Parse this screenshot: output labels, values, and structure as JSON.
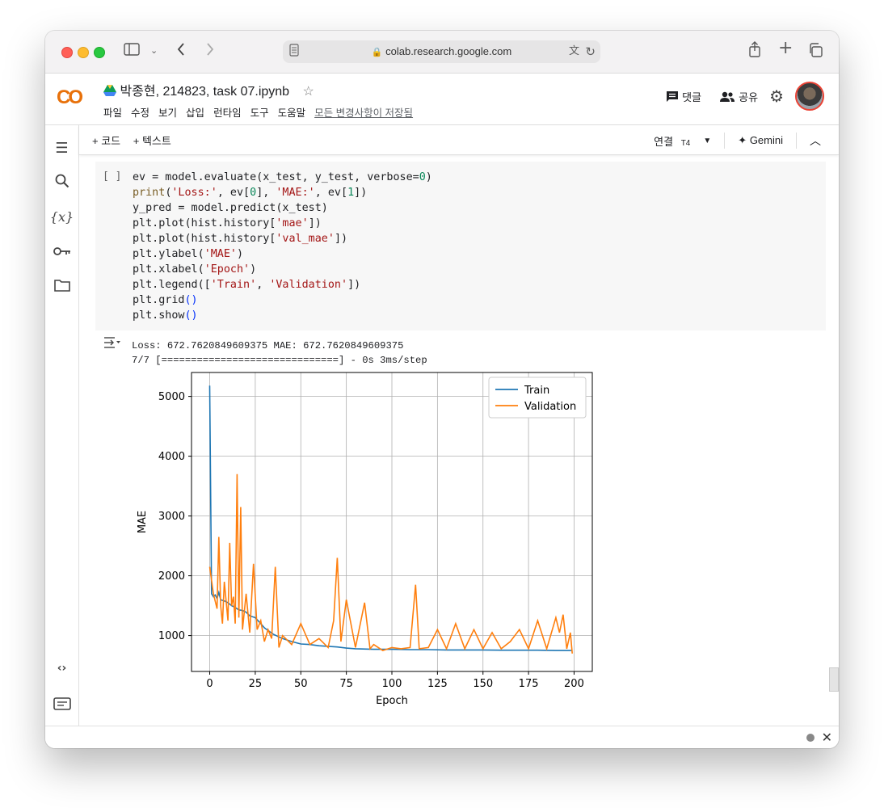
{
  "browser": {
    "url": "colab.research.google.com"
  },
  "colab": {
    "logo": "CO",
    "notebook_title": "박종현, 214823, task 07.ipynb",
    "menu": [
      "파일",
      "수정",
      "보기",
      "삽입",
      "런타임",
      "도구",
      "도움말"
    ],
    "saved_status": "모든 변경사항이 저장됨",
    "comment_label": "댓글",
    "share_label": "공유"
  },
  "toolbar": {
    "add_code": "+ 코드",
    "add_text": "+ 텍스트",
    "connect": "연결",
    "runtime": "T4",
    "gemini": "Gemini"
  },
  "cell": {
    "bracket": "[ ]"
  },
  "output": {
    "line1": "Loss: 672.7620849609375 MAE: 672.7620849609375",
    "line2": "7/7 [==============================] - 0s 3ms/step"
  },
  "chart_data": {
    "type": "line",
    "xlabel": "Epoch",
    "ylabel": "MAE",
    "xlim": [
      -10,
      210
    ],
    "ylim": [
      400,
      5400
    ],
    "xticks": [
      0,
      25,
      50,
      75,
      100,
      125,
      150,
      175,
      200
    ],
    "yticks": [
      1000,
      2000,
      3000,
      4000,
      5000
    ],
    "grid": true,
    "legend": "top-right",
    "series": [
      {
        "name": "Train",
        "color": "#1f77b4",
        "x": [
          0,
          1,
          2,
          3,
          4,
          5,
          6,
          8,
          10,
          12,
          14,
          16,
          18,
          20,
          22,
          25,
          28,
          30,
          35,
          40,
          45,
          50,
          55,
          60,
          65,
          70,
          75,
          80,
          90,
          100,
          110,
          120,
          130,
          140,
          150,
          160,
          170,
          180,
          190,
          199
        ],
        "y": [
          5180,
          1700,
          1650,
          1680,
          1620,
          1720,
          1600,
          1580,
          1550,
          1500,
          1470,
          1430,
          1420,
          1390,
          1330,
          1300,
          1200,
          1130,
          1020,
          950,
          900,
          860,
          850,
          830,
          820,
          810,
          790,
          780,
          770,
          770,
          765,
          765,
          760,
          760,
          760,
          755,
          755,
          755,
          750,
          750
        ]
      },
      {
        "name": "Validation",
        "color": "#ff7f0e",
        "x": [
          0,
          2,
          4,
          5,
          6,
          7,
          8,
          10,
          11,
          12,
          13,
          14,
          15,
          16,
          17,
          18,
          20,
          22,
          24,
          26,
          28,
          30,
          32,
          34,
          36,
          38,
          40,
          45,
          50,
          55,
          60,
          65,
          68,
          70,
          72,
          75,
          80,
          85,
          88,
          90,
          95,
          100,
          105,
          110,
          113,
          115,
          120,
          125,
          130,
          135,
          140,
          145,
          150,
          155,
          160,
          165,
          170,
          175,
          180,
          185,
          190,
          192,
          194,
          196,
          198,
          199
        ],
        "y": [
          2150,
          1700,
          1450,
          2650,
          1500,
          1200,
          1900,
          1250,
          2550,
          1500,
          1650,
          1200,
          3700,
          1300,
          3150,
          1100,
          1700,
          1050,
          2200,
          1100,
          1250,
          900,
          1100,
          950,
          2150,
          800,
          1000,
          850,
          1200,
          850,
          950,
          800,
          1250,
          2300,
          900,
          1600,
          800,
          1550,
          780,
          850,
          750,
          800,
          780,
          800,
          1850,
          780,
          800,
          1100,
          780,
          1200,
          780,
          1100,
          780,
          1050,
          780,
          900,
          1100,
          780,
          1250,
          780,
          1300,
          1050,
          1350,
          780,
          1050,
          700
        ]
      }
    ]
  }
}
